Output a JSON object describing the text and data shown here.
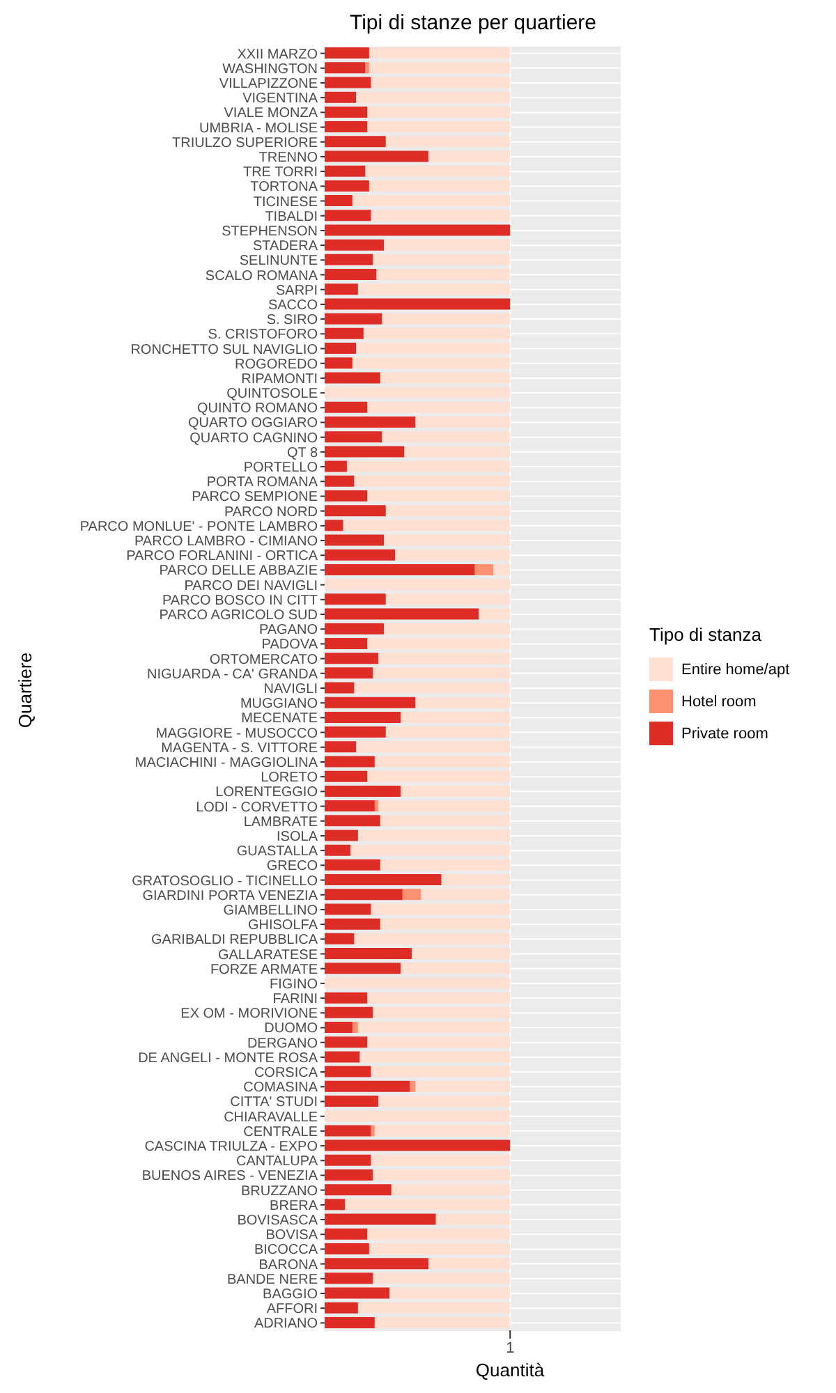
{
  "chart_data": {
    "type": "bar",
    "orientation": "horizontal",
    "stacked": true,
    "title": "Tipi di stanze per quartiere",
    "xlabel": "Quantità",
    "ylabel": "Quartiere",
    "legend_title": "Tipo di stanza",
    "legend": "right",
    "grid": true,
    "categories": [
      "XXII MARZO",
      "WASHINGTON",
      "VILLAPIZZONE",
      "VIGENTINA",
      "VIALE MONZA",
      "UMBRIA - MOLISE",
      "TRIULZO SUPERIORE",
      "TRENNO",
      "TRE TORRI",
      "TORTONA",
      "TICINESE",
      "TIBALDI",
      "STEPHENSON",
      "STADERA",
      "SELINUNTE",
      "SCALO ROMANA",
      "SARPI",
      "SACCO",
      "S. SIRO",
      "S. CRISTOFORO",
      "RONCHETTO SUL NAVIGLIO",
      "ROGOREDO",
      "RIPAMONTI",
      "QUINTOSOLE",
      "QUINTO ROMANO",
      "QUARTO OGGIARO",
      "QUARTO CAGNINO",
      "QT 8",
      "PORTELLO",
      "PORTA ROMANA",
      "PARCO SEMPIONE",
      "PARCO NORD",
      "PARCO MONLUE' - PONTE LAMBRO",
      "PARCO LAMBRO - CIMIANO",
      "PARCO FORLANINI - ORTICA",
      "PARCO DELLE ABBAZIE",
      "PARCO DEI NAVIGLI",
      "PARCO BOSCO IN CITT",
      "PARCO AGRICOLO SUD",
      "PAGANO",
      "PADOVA",
      "ORTOMERCATO",
      "NIGUARDA - CA' GRANDA",
      "NAVIGLI",
      "MUGGIANO",
      "MECENATE",
      "MAGGIORE - MUSOCCO",
      "MAGENTA - S. VITTORE",
      "MACIACHINI - MAGGIOLINA",
      "LORETO",
      "LORENTEGGIO",
      "LODI - CORVETTO",
      "LAMBRATE",
      "ISOLA",
      "GUASTALLA",
      "GRECO",
      "GRATOSOGLIO - TICINELLO",
      "GIARDINI PORTA VENEZIA",
      "GIAMBELLINO",
      "GHISOLFA",
      "GARIBALDI REPUBBLICA",
      "GALLARATESE",
      "FORZE ARMATE",
      "FIGINO",
      "FARINI",
      "EX OM - MORIVIONE",
      "DUOMO",
      "DERGANO",
      "DE ANGELI - MONTE ROSA",
      "CORSICA",
      "COMASINA",
      "CITTA' STUDI",
      "CHIARAVALLE",
      "CENTRALE",
      "CASCINA TRIULZA - EXPO",
      "CANTALUPA",
      "BUENOS AIRES - VENEZIA",
      "BRUZZANO",
      "BRERA",
      "BOVISASCA",
      "BOVISA",
      "BICOCCA",
      "BARONA",
      "BANDE NERE",
      "BAGGIO",
      "AFFORI",
      "ADRIANO"
    ],
    "xlim": [
      0,
      1.6
    ],
    "xticks": [
      1
    ],
    "series": [
      {
        "name": "Private room",
        "color": "#de2d26",
        "values": [
          0.24,
          0.22,
          0.25,
          0.17,
          0.23,
          0.23,
          0.33,
          0.56,
          0.22,
          0.24,
          0.15,
          0.25,
          1,
          0.32,
          0.26,
          0.28,
          0.18,
          1,
          0.31,
          0.21,
          0.17,
          0.15,
          0.3,
          0,
          0.23,
          0.49,
          0.31,
          0.43,
          0.12,
          0.16,
          0.23,
          0.33,
          0.1,
          0.32,
          0.38,
          0.81,
          0,
          0.33,
          0.83,
          0.32,
          0.23,
          0.29,
          0.26,
          0.16,
          0.49,
          0.41,
          0.33,
          0.17,
          0.27,
          0.23,
          0.41,
          0.27,
          0.3,
          0.18,
          0.14,
          0.3,
          0.63,
          0.42,
          0.25,
          0.3,
          0.16,
          0.47,
          0.41,
          0,
          0.23,
          0.26,
          0.15,
          0.23,
          0.19,
          0.25,
          0.46,
          0.29,
          0,
          0.25,
          1,
          0.25,
          0.26,
          0.36,
          0.11,
          0.6,
          0.23,
          0.24,
          0.56,
          0.26,
          0.35,
          0.18,
          0.27
        ]
      },
      {
        "name": "Hotel room",
        "color": "#fc9272",
        "values": [
          0,
          0.02,
          0,
          0,
          0,
          0,
          0,
          0,
          0,
          0,
          0,
          0,
          0,
          0,
          0,
          0,
          0,
          0,
          0,
          0,
          0,
          0,
          0,
          0,
          0,
          0,
          0,
          0,
          0,
          0,
          0,
          0,
          0,
          0,
          0,
          0.1,
          0,
          0,
          0,
          0,
          0,
          0,
          0,
          0,
          0,
          0,
          0,
          0,
          0,
          0,
          0,
          0.02,
          0,
          0,
          0,
          0,
          0,
          0.1,
          0,
          0,
          0,
          0,
          0,
          0,
          0,
          0,
          0.03,
          0,
          0,
          0,
          0.03,
          0,
          0,
          0.02,
          0,
          0,
          0,
          0,
          0,
          0,
          0,
          0,
          0,
          0,
          0,
          0,
          0
        ]
      },
      {
        "name": "Entire home/apt",
        "color": "#fee0d2",
        "values": [
          0.76,
          0.76,
          0.75,
          0.83,
          0.77,
          0.77,
          0.67,
          0.44,
          0.78,
          0.76,
          0.85,
          0.75,
          0,
          0.68,
          0.74,
          0.72,
          0.82,
          0,
          0.69,
          0.79,
          0.83,
          0.85,
          0.7,
          1,
          0.77,
          0.51,
          0.69,
          0.57,
          0.88,
          0.84,
          0.77,
          0.67,
          0.9,
          0.68,
          0.62,
          0.09,
          1,
          0.67,
          0.17,
          0.68,
          0.77,
          0.71,
          0.74,
          0.84,
          0.51,
          0.59,
          0.67,
          0.83,
          0.73,
          0.77,
          0.59,
          0.71,
          0.7,
          0.82,
          0.86,
          0.7,
          0.37,
          0.48,
          0.75,
          0.7,
          0.84,
          0.53,
          0.59,
          1,
          0.77,
          0.74,
          0.82,
          0.77,
          0.81,
          0.75,
          0.51,
          0.71,
          1,
          0.73,
          0,
          0.75,
          0.74,
          0.64,
          0.89,
          0.4,
          0.77,
          0.76,
          0.44,
          0.74,
          0.65,
          0.82,
          0.73
        ]
      }
    ]
  }
}
